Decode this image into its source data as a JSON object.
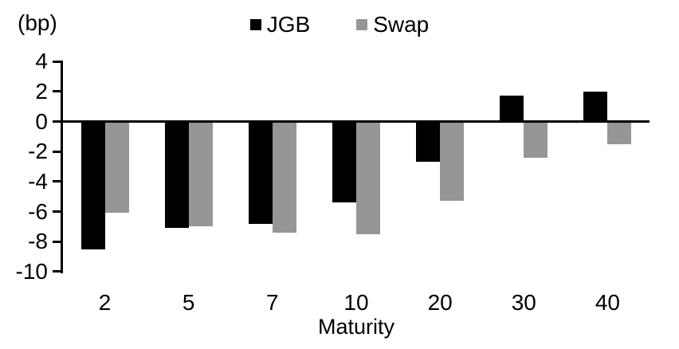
{
  "chart_data": {
    "type": "bar",
    "title": "",
    "unit_label": "(bp)",
    "xlabel": "Maturity",
    "categories": [
      "2",
      "5",
      "7",
      "10",
      "20",
      "30",
      "40"
    ],
    "series": [
      {
        "name": "JGB",
        "color": "#000000",
        "values": [
          -8.5,
          -7.1,
          -6.8,
          -5.4,
          -2.7,
          1.7,
          2.0
        ]
      },
      {
        "name": "Swap",
        "color": "#969696",
        "values": [
          -6.1,
          -7.0,
          -7.4,
          -7.5,
          -5.3,
          -2.4,
          -1.5
        ]
      }
    ],
    "yticks": [
      4,
      2,
      0,
      -2,
      -4,
      -6,
      -8,
      -10
    ],
    "ylim": [
      -10,
      4
    ],
    "grid": false,
    "legend_position": "top-center",
    "background": "#ffffff"
  }
}
